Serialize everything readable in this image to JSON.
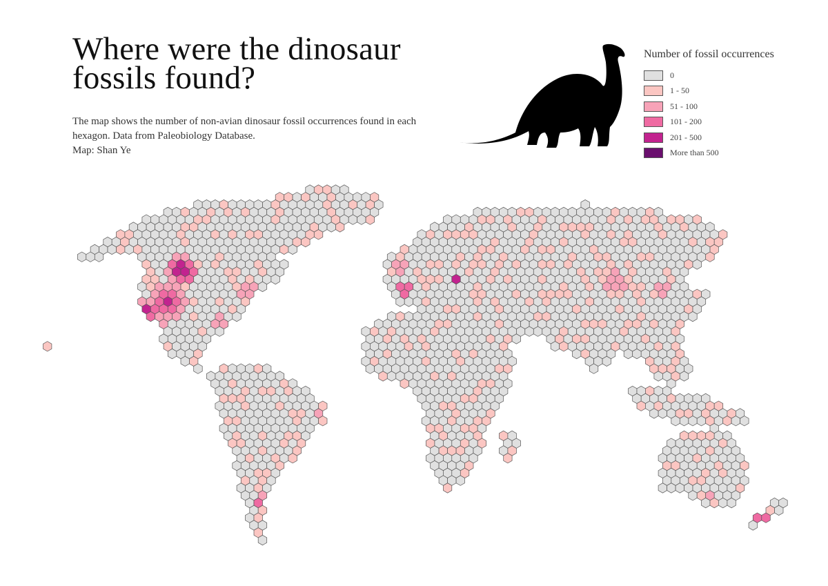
{
  "title": "Where were the dinosaur fossils found?",
  "subtitle": "The map shows the number of non-avian dinosaur fossil occurrences found in each hexagon. Data from Paleobiology Database.",
  "credit": "Map: Shan Ye",
  "legend": {
    "title": "Number of fossil occurrences",
    "items": [
      {
        "label": "0",
        "color": "#e0e0e0"
      },
      {
        "label": "1 - 50",
        "color": "#fbc6c2"
      },
      {
        "label": "51 - 100",
        "color": "#f7a3b8"
      },
      {
        "label": "101 - 200",
        "color": "#ef6aa2"
      },
      {
        "label": "201 - 500",
        "color": "#c2238f"
      },
      {
        "label": "More than 500",
        "color": "#6a0f6e"
      }
    ]
  },
  "colors": {
    "hex_stroke": "#555555",
    "silhouette": "#000000"
  }
}
